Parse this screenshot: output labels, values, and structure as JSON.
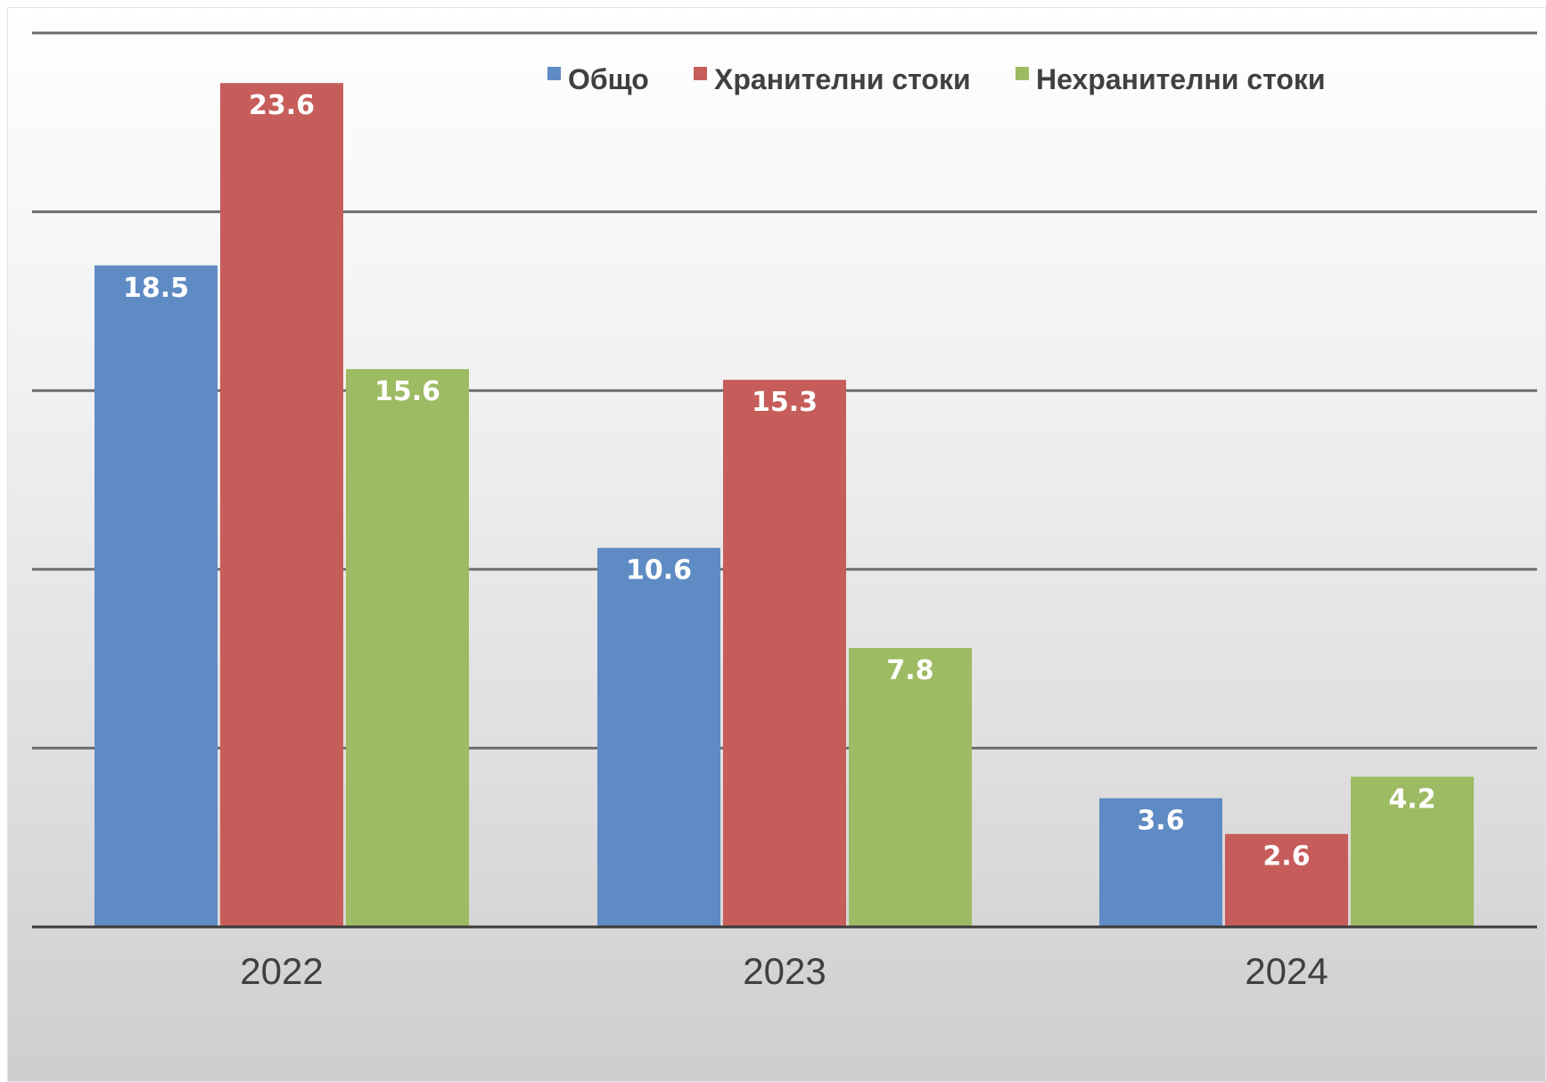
{
  "chart_data": {
    "type": "bar",
    "title": "",
    "xlabel": "",
    "ylabel": "",
    "categories": [
      "2022",
      "2023",
      "2024"
    ],
    "series": [
      {
        "name": "Общо",
        "values": [
          18.5,
          10.6,
          3.6
        ],
        "color": "#5f8bc4"
      },
      {
        "name": "Хранителни стоки",
        "values": [
          23.6,
          15.3,
          2.6
        ],
        "color": "#c65d5a"
      },
      {
        "name": "Нехранителни стоки",
        "values": [
          15.6,
          7.8,
          4.2
        ],
        "color": "#9dbb62"
      }
    ],
    "ylim": [
      0,
      25
    ],
    "gridline_step": 5,
    "grid": true,
    "legend_position": "top",
    "data_labels": true,
    "y_axis_labels_visible": false
  }
}
